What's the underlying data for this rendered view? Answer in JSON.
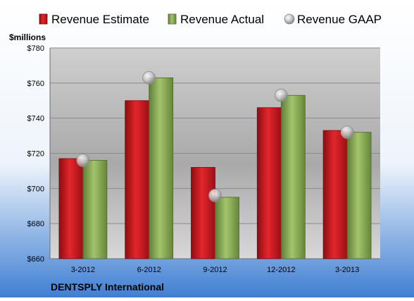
{
  "chart_data": {
    "type": "bar",
    "company": "DENTSPLY International",
    "ylabel": "$millions",
    "ylim": [
      660,
      780
    ],
    "yticks": [
      660,
      680,
      700,
      720,
      740,
      760,
      780
    ],
    "ytick_labels": [
      "$660",
      "$680",
      "$700",
      "$720",
      "$740",
      "$760",
      "$780"
    ],
    "grid": true,
    "legend_position": "top",
    "categories": [
      "3-2012",
      "6-2012",
      "9-2012",
      "12-2012",
      "3-2013"
    ],
    "series": [
      {
        "name": "Revenue Estimate",
        "type": "bar",
        "color": "#c8161d",
        "values": [
          717,
          750,
          712,
          746,
          733
        ]
      },
      {
        "name": "Revenue Actual",
        "type": "bar",
        "color": "#8db45a",
        "values": [
          716,
          763,
          695,
          753,
          732
        ]
      },
      {
        "name": "Revenue GAAP",
        "type": "scatter",
        "color": "#b8b8b8",
        "values": [
          716,
          763,
          696,
          753,
          732
        ]
      }
    ]
  }
}
